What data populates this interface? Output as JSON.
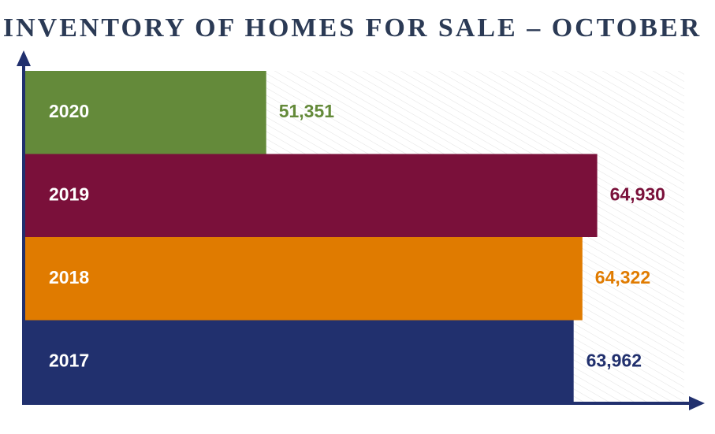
{
  "chart_data": {
    "type": "hbar",
    "title": "INVENTORY OF HOMES FOR SALE – OCTOBER",
    "categories": [
      "2020",
      "2019",
      "2018",
      "2017"
    ],
    "values": [
      51351,
      64930,
      64322,
      63962
    ],
    "value_labels": [
      "51,351",
      "64,930",
      "64,322",
      "63,962"
    ],
    "colors": [
      "#648a3a",
      "#7a103a",
      "#e07b00",
      "#21306e"
    ],
    "xlim": [
      41400,
      68500
    ]
  }
}
